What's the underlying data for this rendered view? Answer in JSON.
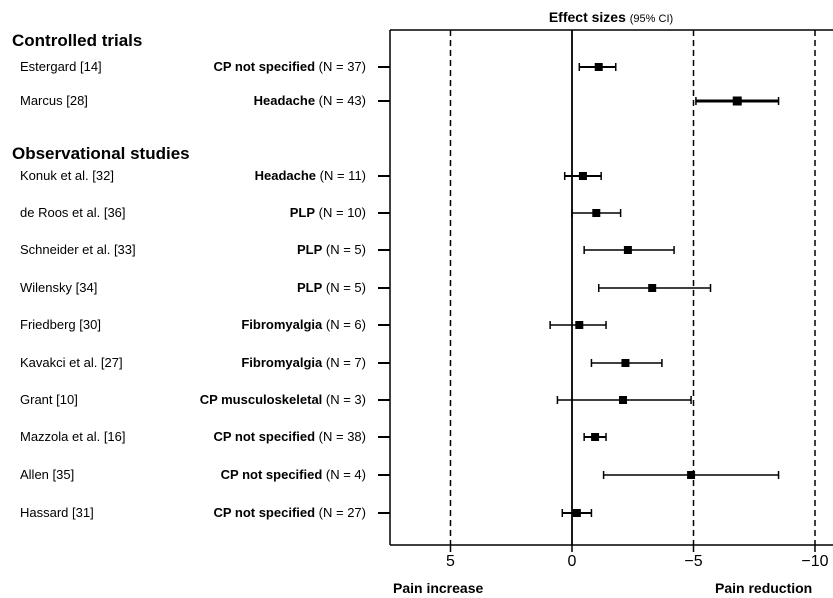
{
  "chart_data": {
    "type": "forest",
    "title": "Effect sizes",
    "title_note": "(95% CI)",
    "x_ticks": [
      {
        "value": 5,
        "label": "5"
      },
      {
        "value": 0,
        "label": "0"
      },
      {
        "value": -5,
        "label": "−5"
      },
      {
        "value": -10,
        "label": "−10"
      }
    ],
    "xlim": [
      7.5,
      -10.5
    ],
    "x_reversed": true,
    "reference_lines_dashed": [
      5,
      -5,
      -10
    ],
    "reference_line_solid": 0,
    "xlabel_left": "Pain increase",
    "xlabel_right": "Pain reduction",
    "sections": [
      {
        "name": "Controlled trials",
        "studies": [
          {
            "study": "Estergard [14]",
            "condition": "CP not specified",
            "n": "(N = 37)",
            "effect": -1.1,
            "ci_low": -1.8,
            "ci_high": -0.3
          },
          {
            "study": "Marcus [28]",
            "condition": "Headache",
            "n": "(N = 43)",
            "effect": -6.8,
            "ci_low": -8.5,
            "ci_high": -5.1
          }
        ]
      },
      {
        "name": "Observational studies",
        "studies": [
          {
            "study": "Konuk et al. [32]",
            "condition": "Headache",
            "n": "(N = 11)",
            "effect": -0.45,
            "ci_low": -1.2,
            "ci_high": 0.3
          },
          {
            "study": "de Roos et al. [36]",
            "condition": "PLP",
            "n": "(N = 10)",
            "effect": -1.0,
            "ci_low": -2.0,
            "ci_high": 0.0
          },
          {
            "study": "Schneider et al. [33]",
            "condition": "PLP",
            "n": "(N = 5)",
            "effect": -2.3,
            "ci_low": -4.2,
            "ci_high": -0.5
          },
          {
            "study": "Wilensky [34]",
            "condition": "PLP",
            "n": "(N = 5)",
            "effect": -3.3,
            "ci_low": -5.7,
            "ci_high": -1.1
          },
          {
            "study": "Friedberg [30]",
            "condition": "Fibromyalgia",
            "n": "(N = 6)",
            "effect": -0.3,
            "ci_low": -1.4,
            "ci_high": 0.9
          },
          {
            "study": "Kavakci et al. [27]",
            "condition": "Fibromyalgia",
            "n": "(N = 7)",
            "effect": -2.2,
            "ci_low": -3.7,
            "ci_high": -0.8
          },
          {
            "study": "Grant [10]",
            "condition": "CP musculoskeletal",
            "n": "(N = 3)",
            "effect": -2.1,
            "ci_low": -4.9,
            "ci_high": 0.6
          },
          {
            "study": "Mazzola et al. [16]",
            "condition": "CP not specified",
            "n": "(N = 38)",
            "effect": -0.95,
            "ci_low": -1.4,
            "ci_high": -0.5
          },
          {
            "study": "Allen [35]",
            "condition": "CP not specified",
            "n": "(N = 4)",
            "effect": -4.9,
            "ci_low": -8.5,
            "ci_high": -1.3
          },
          {
            "study": "Hassard [31]",
            "condition": "CP not specified",
            "n": "(N = 27)",
            "effect": -0.2,
            "ci_low": -0.8,
            "ci_high": 0.4
          }
        ]
      }
    ]
  }
}
